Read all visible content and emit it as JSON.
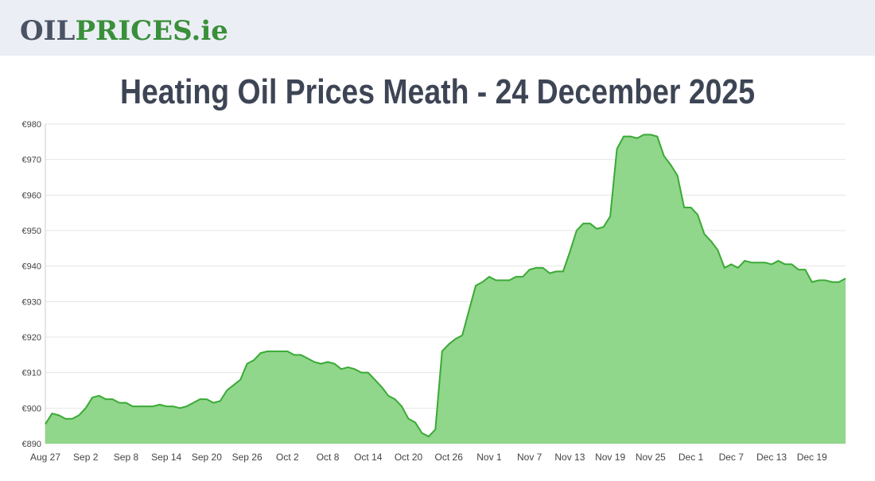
{
  "header": {
    "logo": [
      "OIL",
      "PRICES.ie"
    ]
  },
  "chart_data": {
    "type": "area",
    "title": "Heating Oil Prices Meath - 24 December 2025",
    "categories": [
      "Aug 27",
      null,
      null,
      null,
      null,
      null,
      "Sep 2",
      null,
      null,
      null,
      null,
      null,
      "Sep 8",
      null,
      null,
      null,
      null,
      null,
      "Sep 14",
      null,
      null,
      null,
      null,
      null,
      "Sep 20",
      null,
      null,
      null,
      null,
      null,
      "Sep 26",
      null,
      null,
      null,
      null,
      null,
      "Oct 2",
      null,
      null,
      null,
      null,
      null,
      "Oct 8",
      null,
      null,
      null,
      null,
      null,
      "Oct 14",
      null,
      null,
      null,
      null,
      null,
      "Oct 20",
      null,
      null,
      null,
      null,
      null,
      "Oct 26",
      null,
      null,
      null,
      null,
      null,
      "Nov 1",
      null,
      null,
      null,
      null,
      null,
      "Nov 7",
      null,
      null,
      null,
      null,
      null,
      "Nov 13",
      null,
      null,
      null,
      null,
      null,
      "Nov 19",
      null,
      null,
      null,
      null,
      null,
      "Nov 25",
      null,
      null,
      null,
      null,
      null,
      "Dec 1",
      null,
      null,
      null,
      null,
      null,
      "Dec 7",
      null,
      null,
      null,
      null,
      null,
      "Dec 13",
      null,
      null,
      null,
      null,
      null,
      "Dec 19",
      null,
      null,
      null,
      null,
      null
    ],
    "values": [
      895.5,
      898.5,
      898,
      897,
      897,
      898,
      900,
      903,
      903.5,
      902.5,
      902.5,
      901.5,
      901.5,
      900.5,
      900.5,
      900.5,
      900.5,
      901,
      900.5,
      900.5,
      900,
      900.5,
      901.5,
      902.5,
      902.5,
      901.5,
      902,
      905,
      906.5,
      908,
      912.5,
      913.5,
      915.5,
      916,
      916,
      916,
      916,
      915,
      915,
      914,
      913,
      912.5,
      913,
      912.5,
      911,
      911.5,
      911,
      910,
      910,
      908,
      906,
      903.5,
      902.5,
      900.5,
      897,
      896,
      893,
      892,
      894,
      916,
      918,
      919.5,
      920.5,
      927.5,
      934.5,
      935.5,
      937,
      936,
      936,
      936,
      937,
      937,
      939,
      939.5,
      939.5,
      938,
      938.5,
      938.5,
      944,
      950,
      952,
      952,
      950.5,
      951,
      954,
      973,
      976.5,
      976.5,
      976,
      977,
      977,
      976.5,
      971,
      968.5,
      965.5,
      956.5,
      956.5,
      954.5,
      949,
      947,
      944.5,
      939.5,
      940.5,
      939.5,
      941.5,
      941,
      941,
      941,
      940.5,
      941.5,
      940.5,
      940.5,
      939,
      939,
      935.5,
      936,
      936,
      935.5,
      935.5,
      936.5
    ],
    "color": "#3aaa35",
    "area_color": "#90d68b",
    "ylim": [
      890,
      980
    ],
    "yticks": [
      {
        "value": 890,
        "label": "€890"
      },
      {
        "value": 900,
        "label": "€900"
      },
      {
        "value": 910,
        "label": "€910"
      },
      {
        "value": 920,
        "label": "€920"
      },
      {
        "value": 930,
        "label": "€930"
      },
      {
        "value": 940,
        "label": "€940"
      },
      {
        "value": 950,
        "label": "€950"
      },
      {
        "value": 960,
        "label": "€960"
      },
      {
        "value": 970,
        "label": "€970"
      },
      {
        "value": 980,
        "label": "€980"
      }
    ],
    "grid": true
  }
}
